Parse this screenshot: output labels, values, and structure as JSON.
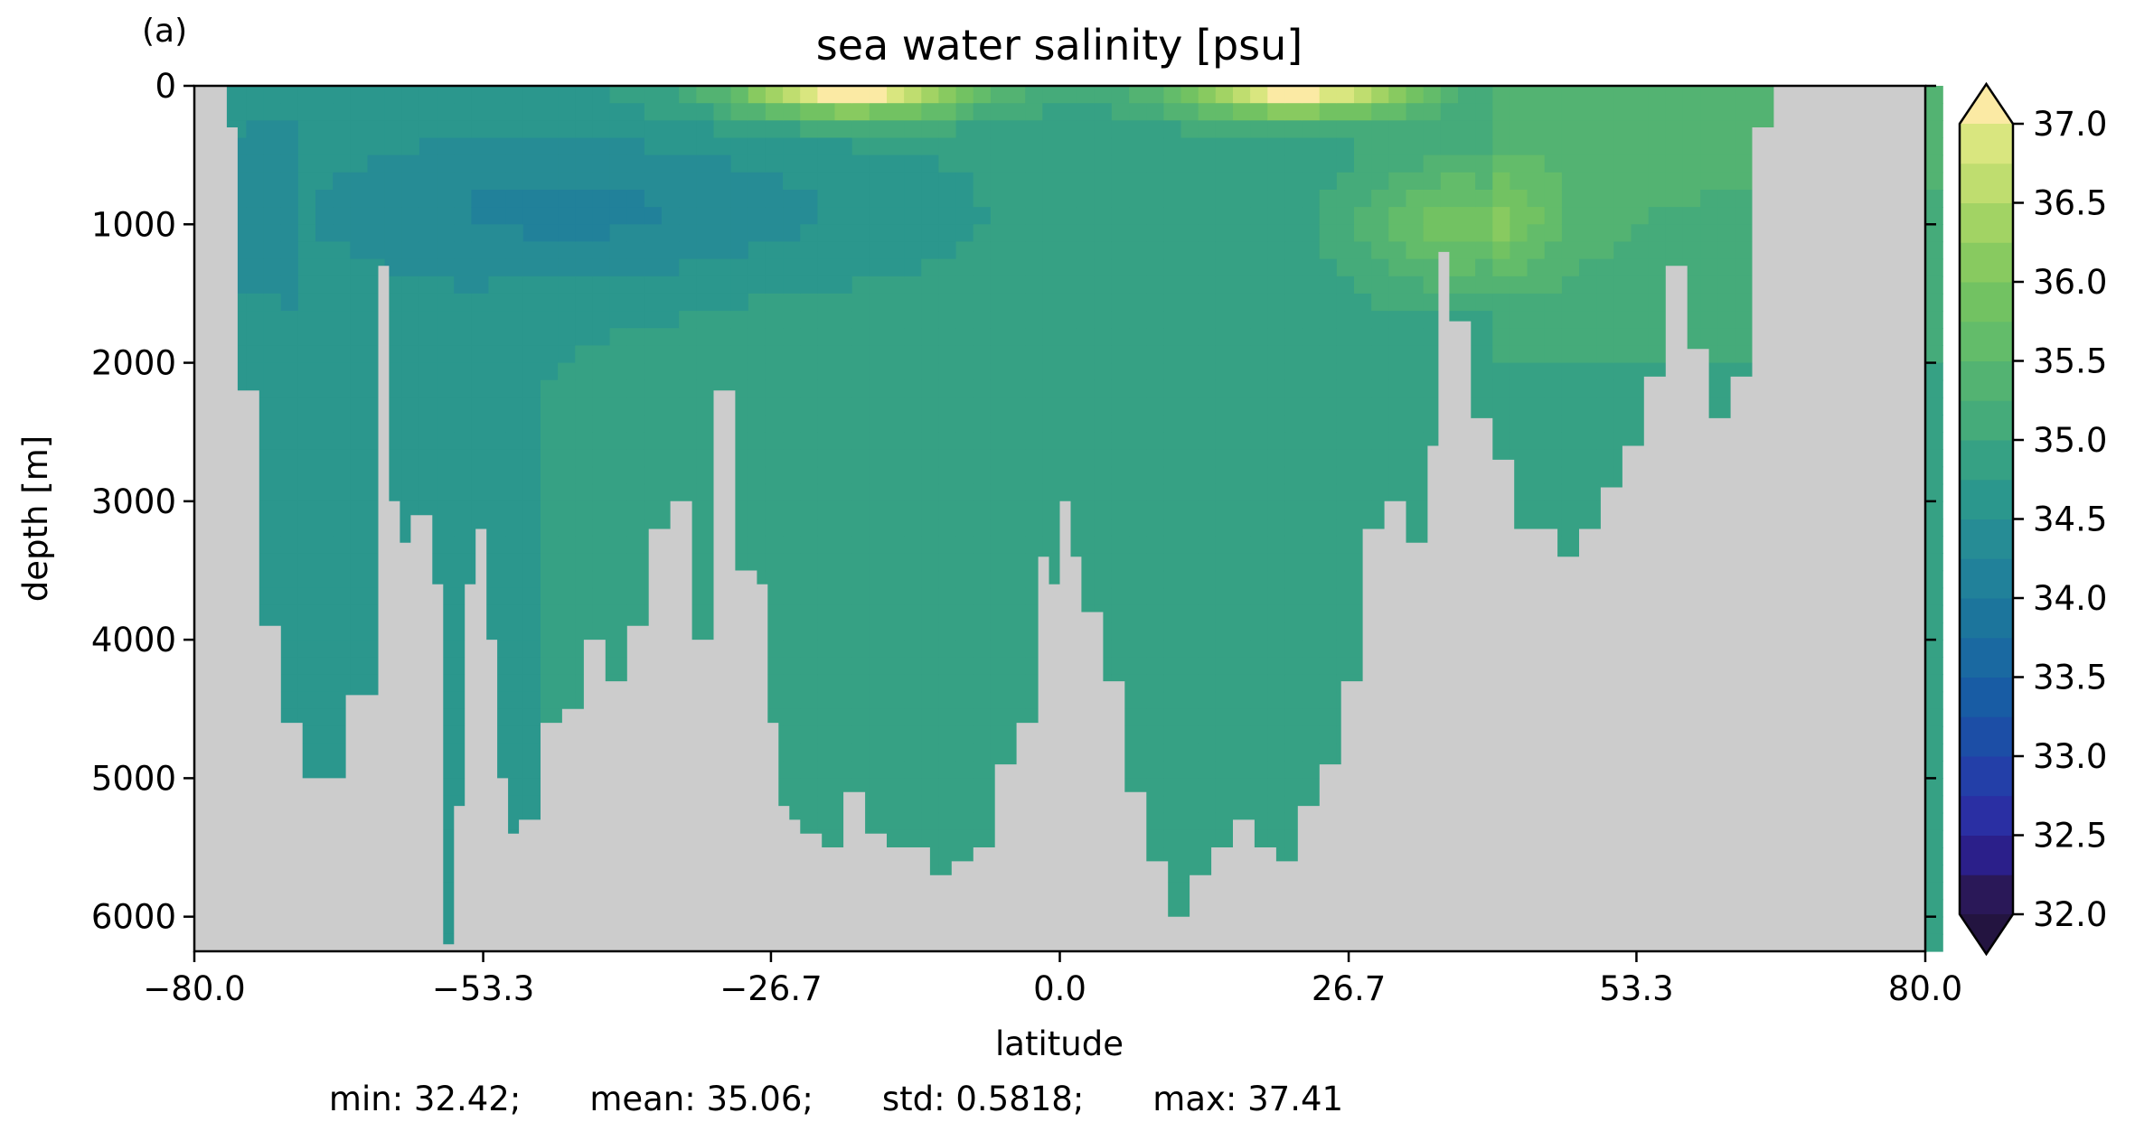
{
  "chart_data": {
    "type": "heatmap",
    "panel_label": "(a)",
    "title": "sea water salinity [psu]",
    "xlabel": "latitude",
    "ylabel": "depth [m]",
    "xlim": [
      -80.0,
      80.0
    ],
    "ylim": [
      6250,
      0
    ],
    "x_ticks": [
      "−80.0",
      "−53.3",
      "−26.7",
      "0.0",
      "26.7",
      "53.3",
      "80.0"
    ],
    "x_tick_values": [
      -80.0,
      -53.3,
      -26.7,
      0.0,
      26.7,
      53.3,
      80.0
    ],
    "y_ticks": [
      "0",
      "1000",
      "2000",
      "3000",
      "4000",
      "5000",
      "6000"
    ],
    "y_tick_values": [
      0,
      1000,
      2000,
      3000,
      4000,
      5000,
      6000
    ],
    "colorbar": {
      "min": 32.0,
      "max": 37.0,
      "step": 0.25,
      "extend": "both",
      "tick_labels": [
        "32.0",
        "32.5",
        "33.0",
        "33.5",
        "34.0",
        "34.5",
        "35.0",
        "35.5",
        "36.0",
        "36.5",
        "37.0"
      ],
      "colors": [
        "#2a1858",
        "#2b1f8a",
        "#2a2fa3",
        "#233fa8",
        "#1c4ea6",
        "#185ca4",
        "#1a69a1",
        "#1c759c",
        "#21819a",
        "#268c95",
        "#2b978d",
        "#36a184",
        "#45ab7a",
        "#53b372",
        "#63bc6a",
        "#72c262",
        "#88ca60",
        "#a2d364",
        "#bfdd6f",
        "#d9e67f",
        "#f2f1a2"
      ],
      "under_color": "#231440",
      "over_color": "#fbeaa4"
    },
    "land_color": "#cccccc",
    "seafloor_depth_m": {
      "latitude": [
        -77,
        -76,
        -74,
        -72,
        -70,
        -68,
        -66,
        -63,
        -62,
        -61,
        -60,
        -58,
        -57,
        -56,
        -55,
        -54,
        -53,
        -52,
        -51,
        -50,
        -48,
        -46,
        -44,
        -42,
        -40,
        -38,
        -36,
        -34,
        -32,
        -30,
        -28,
        -27,
        -26,
        -25,
        -24,
        -22,
        -20,
        -18,
        -16,
        -14,
        -12,
        -10,
        -8,
        -6,
        -4,
        -2,
        -1,
        0,
        1,
        2,
        4,
        6,
        8,
        10,
        12,
        14,
        16,
        18,
        20,
        22,
        24,
        26,
        28,
        30,
        32,
        34,
        35,
        36,
        38,
        40,
        42,
        44,
        46,
        48,
        50,
        52,
        54,
        56,
        58,
        60,
        62,
        64,
        66,
        68,
        69,
        70
      ],
      "depth": [
        300,
        2200,
        3900,
        4600,
        5000,
        5000,
        4400,
        1300,
        3000,
        3300,
        3100,
        3600,
        6200,
        5200,
        3600,
        3200,
        4000,
        5000,
        5400,
        5300,
        4600,
        4500,
        4000,
        4300,
        3900,
        3200,
        3000,
        4000,
        2200,
        3500,
        3600,
        4600,
        5200,
        5300,
        5400,
        5500,
        5100,
        5400,
        5500,
        5500,
        5700,
        5600,
        5500,
        4900,
        4600,
        3400,
        3600,
        3000,
        3400,
        3800,
        4300,
        5100,
        5600,
        6000,
        5700,
        5500,
        5300,
        5500,
        5600,
        5200,
        4900,
        4300,
        3200,
        3000,
        3300,
        2600,
        1200,
        1700,
        2400,
        2700,
        3200,
        3200,
        3400,
        3200,
        2900,
        2600,
        2100,
        1300,
        1900,
        2400,
        2100,
        300,
        0,
        0,
        0,
        0
      ]
    },
    "salinity_structure": {
      "surface_maxima": [
        {
          "latitude": -19,
          "depth_m": 0,
          "salinity": 37.4
        },
        {
          "latitude": 22,
          "depth_m": 0,
          "salinity": 37.3
        }
      ],
      "intermediate_min": {
        "latitude": -40,
        "depth_m": 900,
        "salinity": 34.3
      },
      "mediterranean_tongue": {
        "latitude": 37,
        "depth_m": 1000,
        "salinity": 35.9
      },
      "deep_water_salinity": 34.9,
      "abyssal_south_salinity": 34.7
    },
    "stats": [
      {
        "label": "min:",
        "value": "32.42;"
      },
      {
        "label": "mean:",
        "value": "35.06;"
      },
      {
        "label": "std:",
        "value": "0.5818;"
      },
      {
        "label": "max:",
        "value": "37.41"
      }
    ]
  }
}
